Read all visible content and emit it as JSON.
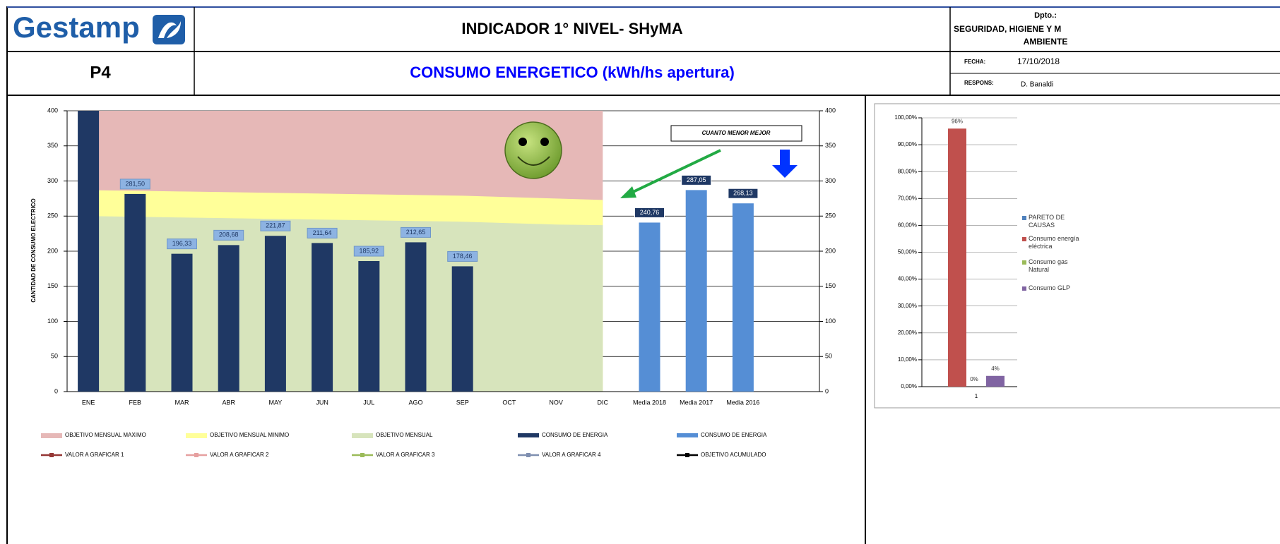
{
  "header": {
    "logo": "Gestamp",
    "title": "INDICADOR 1° NIVEL- SHyMA",
    "dept_label": "Dpto.:",
    "dept_lines": [
      "SEGURIDAD, HIGIENE Y M",
      "AMBIENTE"
    ],
    "code": "P4",
    "subtitle": "CONSUMO ENERGETICO (kWh/hs apertura)",
    "date_label": "FECHA:",
    "date": "17/10/2018",
    "resp_label": "RESPONS:",
    "resp": "D. Banaldi"
  },
  "chart_data": [
    {
      "type": "bar",
      "y_label": "CANTIDAD DE CONSUMO ELECTRICO",
      "annotation": "CUANTO MENOR MEJOR",
      "categories": [
        "ENE",
        "FEB",
        "MAR",
        "ABR",
        "MAY",
        "JUN",
        "JUL",
        "AGO",
        "SEP",
        "OCT",
        "NOV",
        "DIC",
        "Media 2018",
        "Media 2017",
        "Media 2016"
      ],
      "ylim": [
        0,
        400
      ],
      "yticks": [
        0,
        50,
        100,
        150,
        200,
        250,
        300,
        350,
        400
      ],
      "y2lim": [
        0,
        400
      ],
      "y2ticks": [
        0,
        50,
        100,
        150,
        200,
        250,
        300,
        350,
        400
      ],
      "grid": true,
      "areas": [
        {
          "name": "OBJETIVO MENSUAL MAXIMO",
          "color": "#e6b8b7",
          "values": [
            400,
            400,
            400,
            400,
            400,
            400,
            400,
            400,
            400,
            400,
            400,
            400,
            null,
            null,
            null
          ]
        },
        {
          "name": "OBJETIVO MENSUAL MINIMO",
          "color": "#ffff99",
          "values": [
            287,
            286,
            285,
            284,
            283,
            282,
            281,
            280,
            279,
            277,
            275,
            273,
            null,
            null,
            null
          ]
        },
        {
          "name": "OBJETIVO MENSUAL",
          "color": "#d7e4bc",
          "values": [
            250,
            249,
            248,
            247,
            246,
            245,
            244,
            243,
            242,
            240,
            238,
            237,
            null,
            null,
            null
          ]
        }
      ],
      "series": [
        {
          "name": "CONSUMO DE ENERGIA",
          "color": "#1f3864",
          "values": [
            400,
            281.5,
            196.33,
            208.68,
            221.87,
            211.64,
            185.92,
            212.65,
            178.46,
            null,
            null,
            null,
            null,
            null,
            null
          ],
          "value_labels": [
            null,
            "281,50",
            "196,33",
            "208,68",
            "221,87",
            "211,64",
            "185,92",
            "212,65",
            "178,46",
            null,
            null,
            null,
            null,
            null,
            null
          ]
        },
        {
          "name": "CONSUMO DE ENERGIA",
          "color": "#558ed5",
          "values": [
            null,
            null,
            null,
            null,
            null,
            null,
            null,
            null,
            null,
            null,
            null,
            null,
            240.76,
            287.05,
            268.13
          ],
          "value_labels": [
            null,
            null,
            null,
            null,
            null,
            null,
            null,
            null,
            null,
            null,
            null,
            null,
            "240,76",
            "287,05",
            "268,13"
          ]
        }
      ],
      "lines": [
        {
          "name": "VALOR A GRAFICAR 1",
          "color": "#953735"
        },
        {
          "name": "VALOR A GRAFICAR 2",
          "color": "#e6a0a0"
        },
        {
          "name": "VALOR A GRAFICAR 3",
          "color": "#9bbb59"
        },
        {
          "name": "VALOR A GRAFICAR 4",
          "color": "#7f8fb0"
        },
        {
          "name": "OBJETIVO ACUMULADO",
          "color": "#000000"
        }
      ]
    },
    {
      "type": "bar",
      "categories": [
        "1"
      ],
      "ylim": [
        0,
        100
      ],
      "yticks": [
        {
          "value": 0,
          "label": "0,00%"
        },
        {
          "value": 10,
          "label": "10,00%"
        },
        {
          "value": 20,
          "label": "20,00%"
        },
        {
          "value": 30,
          "label": "30,00%"
        },
        {
          "value": 40,
          "label": "40,00%"
        },
        {
          "value": 50,
          "label": "50,00%"
        },
        {
          "value": 60,
          "label": "60,00%"
        },
        {
          "value": 70,
          "label": "70,00%"
        },
        {
          "value": 80,
          "label": "80,00%"
        },
        {
          "value": 90,
          "label": "90,00%"
        },
        {
          "value": 100,
          "label": "100,00%"
        }
      ],
      "grid": true,
      "series": [
        {
          "name": "Consumo energía eléctrica",
          "color": "#c0504d",
          "values": [
            96
          ],
          "value_labels": [
            "96%"
          ]
        },
        {
          "name": "Consumo gas Natural",
          "color": "#9bbb59",
          "values": [
            0
          ],
          "value_labels": [
            "0%"
          ]
        },
        {
          "name": "Consumo GLP",
          "color": "#8064a2",
          "values": [
            4
          ],
          "value_labels": [
            "4%"
          ]
        }
      ],
      "lines": [
        {
          "name": "PARETO DE CAUSAS",
          "color": "#4f81bd"
        }
      ]
    }
  ]
}
